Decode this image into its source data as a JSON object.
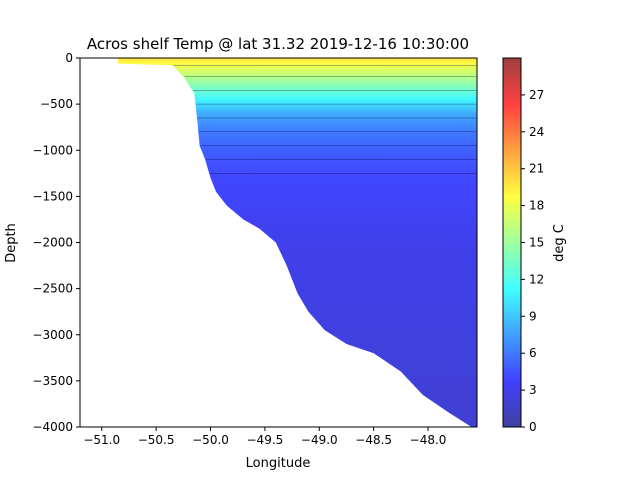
{
  "chart_data": {
    "type": "heatmap",
    "title": "Acros shelf Temp @ lat 31.32 2019-12-16 10:30:00",
    "xlabel": "Longitude",
    "ylabel": "Depth",
    "xlim": [
      -51.2,
      -47.55
    ],
    "ylim": [
      -4000,
      0
    ],
    "xticks": [
      -51.0,
      -50.5,
      -50.0,
      -49.5,
      -49.0,
      -48.5,
      -48.0
    ],
    "xtick_labels": [
      "−51.0",
      "−50.5",
      "−50.0",
      "−49.5",
      "−49.0",
      "−48.5",
      "−48.0"
    ],
    "yticks": [
      0,
      -500,
      -1000,
      -1500,
      -2000,
      -2500,
      -3000,
      -3500,
      -4000
    ],
    "ytick_labels": [
      "0",
      "−500",
      "−1000",
      "−1500",
      "−2000",
      "−2500",
      "−3000",
      "−3500",
      "−4000"
    ],
    "colorbar": {
      "label": "deg C",
      "range": [
        0,
        30
      ],
      "ticks": [
        0,
        3,
        6,
        9,
        12,
        15,
        18,
        21,
        24,
        27
      ],
      "tick_labels": [
        "0",
        "3",
        "6",
        "9",
        "12",
        "15",
        "18",
        "21",
        "24",
        "27"
      ],
      "colormap": "jet"
    },
    "grid": false,
    "bathymetry": [
      [
        -50.85,
        -60
      ],
      [
        -50.6,
        -70
      ],
      [
        -50.35,
        -80
      ],
      [
        -50.25,
        -200
      ],
      [
        -50.15,
        -380
      ],
      [
        -50.12,
        -700
      ],
      [
        -50.1,
        -950
      ],
      [
        -50.05,
        -1100
      ],
      [
        -50.0,
        -1300
      ],
      [
        -49.95,
        -1450
      ],
      [
        -49.85,
        -1600
      ],
      [
        -49.7,
        -1750
      ],
      [
        -49.55,
        -1850
      ],
      [
        -49.4,
        -2000
      ],
      [
        -49.3,
        -2250
      ],
      [
        -49.2,
        -2550
      ],
      [
        -49.1,
        -2750
      ],
      [
        -48.95,
        -2950
      ],
      [
        -48.75,
        -3100
      ],
      [
        -48.5,
        -3200
      ],
      [
        -48.25,
        -3400
      ],
      [
        -48.05,
        -3650
      ],
      [
        -47.8,
        -3850
      ],
      [
        -47.6,
        -4000
      ]
    ],
    "temperature_profile": [
      {
        "depth": 0,
        "temp": 20
      },
      {
        "depth": -50,
        "temp": 19
      },
      {
        "depth": -150,
        "temp": 17
      },
      {
        "depth": -300,
        "temp": 14
      },
      {
        "depth": -450,
        "temp": 11
      },
      {
        "depth": -600,
        "temp": 8
      },
      {
        "depth": -800,
        "temp": 6
      },
      {
        "depth": -1000,
        "temp": 5
      },
      {
        "depth": -1300,
        "temp": 4
      },
      {
        "depth": -2000,
        "temp": 3
      },
      {
        "depth": -4000,
        "temp": 2
      }
    ]
  }
}
